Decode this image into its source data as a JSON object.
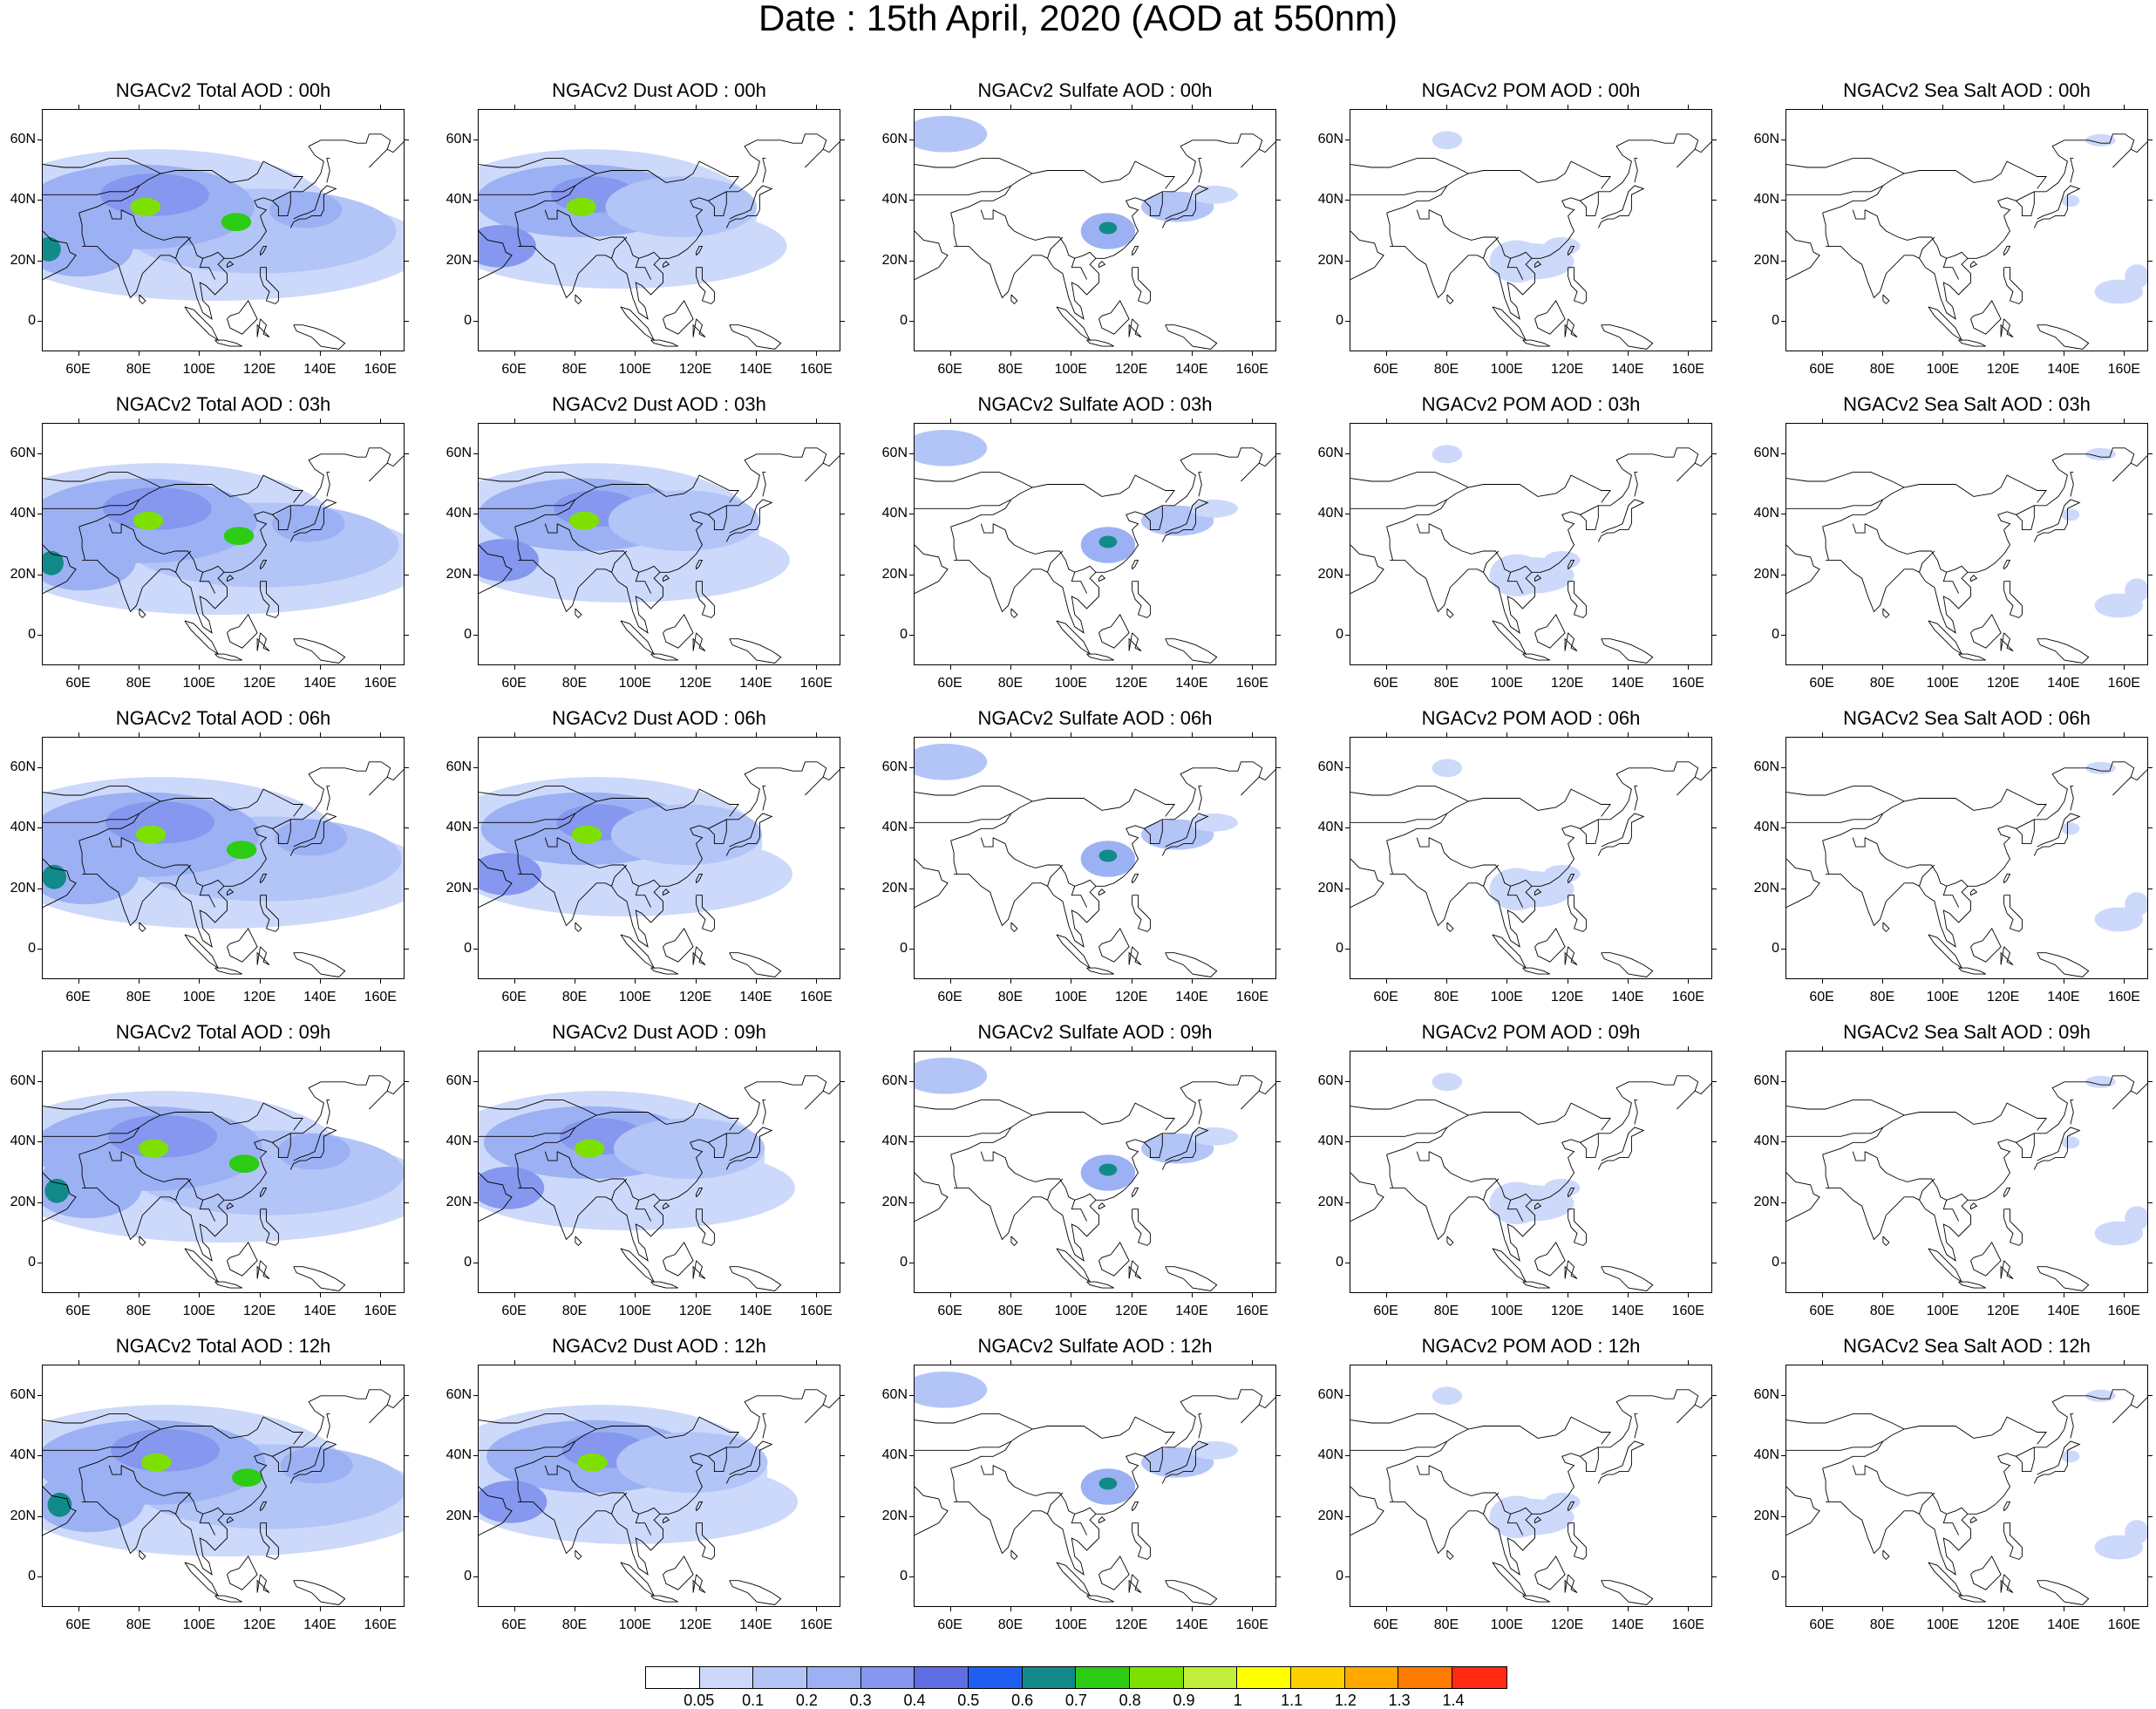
{
  "title": "Date : 15th April, 2020 (AOD at 550nm)",
  "panels": [
    [
      "NGACv2 Total AOD : 00h",
      "NGACv2 Dust AOD : 00h",
      "NGACv2 Sulfate AOD : 00h",
      "NGACv2 POM AOD : 00h",
      "NGACv2 Sea Salt AOD : 00h"
    ],
    [
      "NGACv2 Total AOD : 03h",
      "NGACv2 Dust AOD : 03h",
      "NGACv2 Sulfate AOD : 03h",
      "NGACv2 POM AOD : 03h",
      "NGACv2 Sea Salt AOD : 03h"
    ],
    [
      "NGACv2 Total AOD : 06h",
      "NGACv2 Dust AOD : 06h",
      "NGACv2 Sulfate AOD : 06h",
      "NGACv2 POM AOD : 06h",
      "NGACv2 Sea Salt AOD : 06h"
    ],
    [
      "NGACv2 Total AOD : 09h",
      "NGACv2 Dust AOD : 09h",
      "NGACv2 Sulfate AOD : 09h",
      "NGACv2 POM AOD : 09h",
      "NGACv2 Sea Salt  AOD : 09h"
    ],
    [
      "NGACv2 Total AOD  : 12h",
      "NGACv2 Dust AOD : 12h",
      "NGACv2 Sulfate AOD : 12h",
      "NGACv2 POM  AOD : 12h",
      "NGACv2 Sea Salt  AOD : 12h"
    ]
  ],
  "lat_ticks": [
    "60N",
    "40N",
    "20N",
    "0"
  ],
  "lon_ticks": [
    "60E",
    "80E",
    "100E",
    "120E",
    "140E",
    "160E"
  ],
  "colorbar": {
    "labels": [
      "0.05",
      "0.1",
      "0.2",
      "0.3",
      "0.4",
      "0.5",
      "0.6",
      "0.7",
      "0.8",
      "0.9",
      "1",
      "1.1",
      "1.2",
      "1.3",
      "1.4"
    ],
    "colors": [
      "#ffffff",
      "#cdd9fa",
      "#b3c4f7",
      "#9cb1f3",
      "#8597ee",
      "#5f6ee3",
      "#1f5ef0",
      "#128a8a",
      "#2ccc14",
      "#7ee000",
      "#bfef3a",
      "#ffff00",
      "#ffd000",
      "#ffa800",
      "#ff7a00",
      "#ff2a10"
    ]
  }
}
